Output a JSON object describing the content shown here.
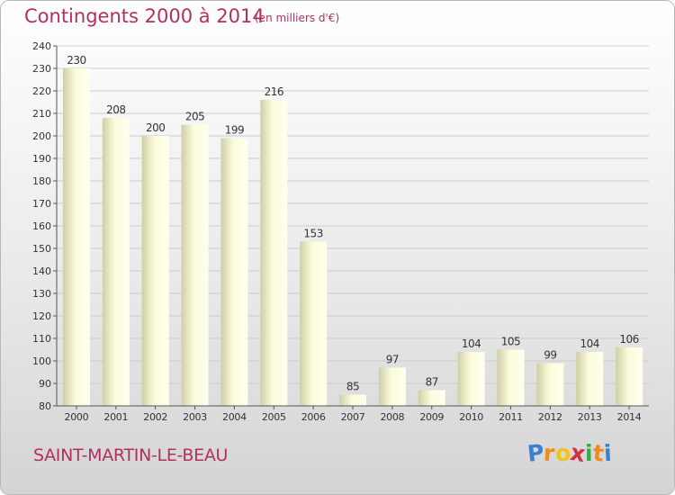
{
  "chart_data": {
    "type": "bar",
    "title": "Contingents 2000 à 2014",
    "subtitle": "(en milliers d'€)",
    "categories": [
      "2000",
      "2001",
      "2002",
      "2003",
      "2004",
      "2005",
      "2006",
      "2007",
      "2008",
      "2009",
      "2010",
      "2011",
      "2012",
      "2013",
      "2014"
    ],
    "values": [
      230,
      208,
      200,
      205,
      199,
      216,
      153,
      85,
      97,
      87,
      104,
      105,
      99,
      104,
      106
    ],
    "ylim": [
      80,
      240
    ],
    "yticks": [
      80,
      90,
      100,
      110,
      120,
      130,
      140,
      150,
      160,
      170,
      180,
      190,
      200,
      210,
      220,
      230,
      240
    ],
    "grid": true,
    "xlabel": "",
    "ylabel": ""
  },
  "commune": "SAINT-MARTIN-LE-BEAU",
  "logo": {
    "letters": [
      "P",
      "r",
      "o",
      "x",
      "i",
      "t",
      "i"
    ],
    "colors": [
      "#3a7fd0",
      "#f08a1c",
      "#f2c318",
      "#d8303a",
      "#3aa84a",
      "#f08a1c",
      "#3a7fd0"
    ]
  },
  "colors": {
    "text_accent": "#b03060",
    "bar_light": "#ffffe4",
    "bar_dark": "#cfcfa5"
  }
}
